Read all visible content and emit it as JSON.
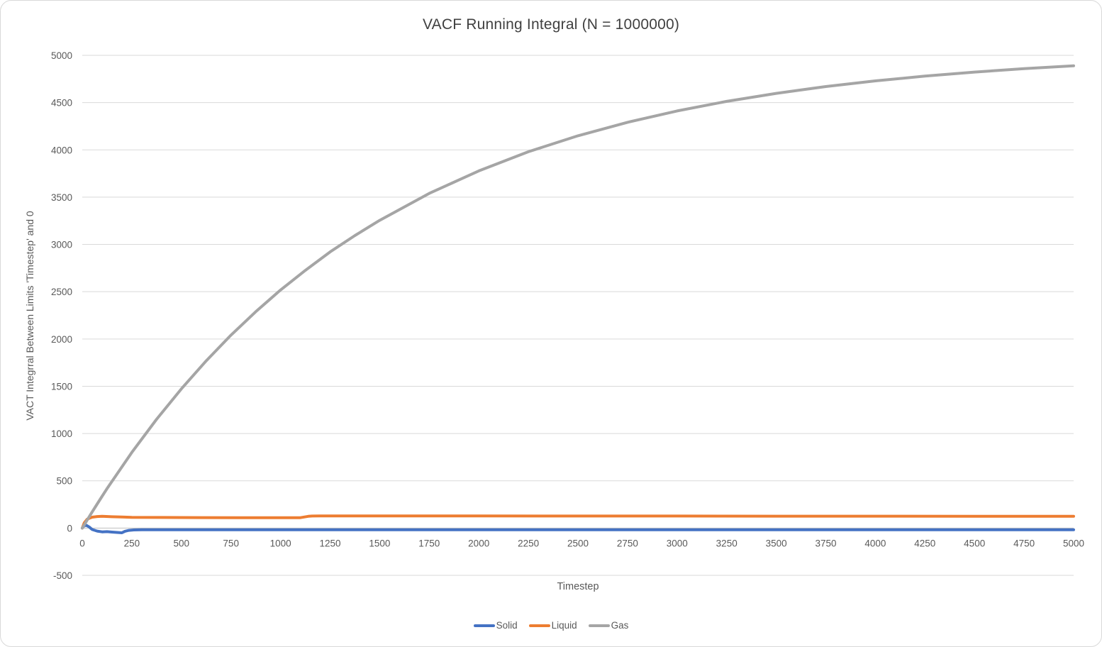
{
  "chart_data": {
    "type": "line",
    "title": "VACF Running Integral (N = 1000000)",
    "xlabel": "Timestep",
    "ylabel": "VACT Integrral Between Limits 'Timestep' and 0",
    "xlim": [
      0,
      5000
    ],
    "ylim": [
      -500,
      5000
    ],
    "x_ticks": [
      0,
      250,
      500,
      750,
      1000,
      1250,
      1500,
      1750,
      2000,
      2250,
      2500,
      2750,
      3000,
      3250,
      3500,
      3750,
      4000,
      4250,
      4500,
      4750,
      5000
    ],
    "y_ticks": [
      -500,
      0,
      500,
      1000,
      1500,
      2000,
      2500,
      3000,
      3500,
      4000,
      4500,
      5000
    ],
    "grid": "horizontal-only",
    "legend_position": "bottom-center",
    "colors": {
      "gridline": "#d9d9d9",
      "axis": "#bfbfbf",
      "tick_text": "#595959",
      "title_text": "#404040"
    },
    "series": [
      {
        "name": "Solid",
        "color": "#4472C4",
        "x": [
          0,
          10,
          20,
          35,
          50,
          75,
          100,
          125,
          150,
          175,
          200,
          215,
          235,
          260,
          300,
          400,
          500,
          750,
          1000,
          1500,
          2000,
          2500,
          3000,
          3500,
          4000,
          4500,
          5000
        ],
        "y": [
          0,
          25,
          30,
          12,
          -15,
          -32,
          -40,
          -38,
          -42,
          -46,
          -50,
          -34,
          -24,
          -20,
          -18,
          -18,
          -18,
          -18,
          -18,
          -18,
          -18,
          -18,
          -18,
          -18,
          -18,
          -18,
          -18
        ]
      },
      {
        "name": "Liquid",
        "color": "#ED7D31",
        "x": [
          0,
          10,
          25,
          50,
          75,
          100,
          150,
          200,
          250,
          400,
          600,
          800,
          1000,
          1100,
          1140,
          1160,
          1200,
          1500,
          2000,
          2500,
          3000,
          3500,
          4000,
          4500,
          5000
        ],
        "y": [
          0,
          55,
          95,
          115,
          122,
          124,
          120,
          117,
          114,
          112,
          111,
          110,
          110,
          110,
          124,
          127,
          128,
          128,
          128,
          127,
          127,
          126,
          126,
          125,
          125
        ]
      },
      {
        "name": "Gas",
        "color": "#A5A5A5",
        "x": [
          0,
          25,
          50,
          75,
          100,
          125,
          250,
          375,
          500,
          625,
          750,
          875,
          1000,
          1125,
          1250,
          1375,
          1500,
          1750,
          2000,
          2250,
          2500,
          2750,
          3000,
          3250,
          3500,
          3750,
          4000,
          4250,
          4500,
          4750,
          5000
        ],
        "y": [
          0,
          86,
          171,
          254,
          337,
          417,
          800,
          1151,
          1473,
          1769,
          2041,
          2288,
          2518,
          2726,
          2921,
          3094,
          3255,
          3540,
          3778,
          3980,
          4149,
          4292,
          4412,
          4513,
          4598,
          4670,
          4730,
          4780,
          4823,
          4859,
          4889
        ]
      }
    ]
  }
}
